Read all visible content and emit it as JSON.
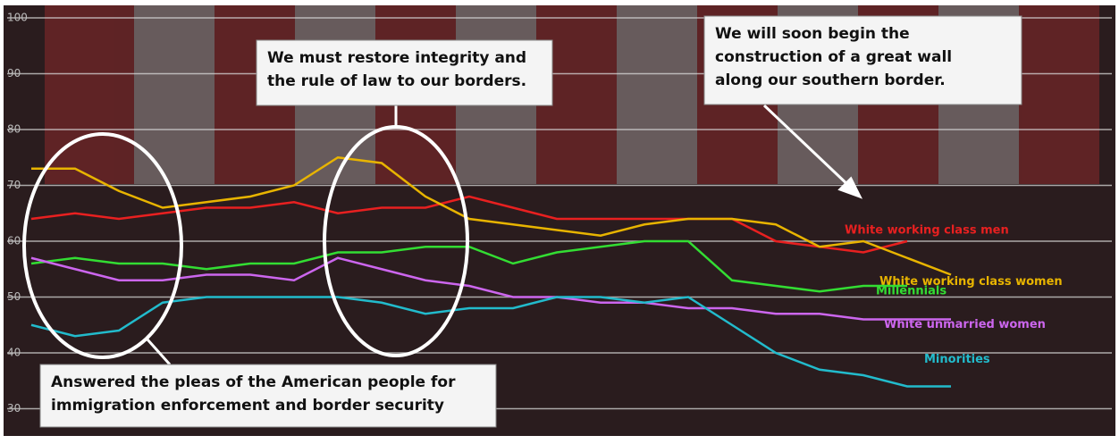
{
  "chart_data": {
    "type": "line",
    "categories": [
      null,
      null,
      null,
      null,
      null,
      null,
      null,
      null,
      null,
      null,
      null,
      null,
      null,
      null,
      null,
      null,
      null,
      null,
      null,
      null,
      null,
      null
    ],
    "series": [
      {
        "name": "White working class men",
        "color": "#e82020",
        "values": [
          64,
          65,
          64,
          65,
          66,
          66,
          67,
          65,
          66,
          66,
          68,
          66,
          64,
          64,
          64,
          64,
          64,
          60,
          59,
          58,
          60,
          null
        ]
      },
      {
        "name": "White working class women",
        "color": "#e8b400",
        "values": [
          73,
          73,
          69,
          66,
          67,
          68,
          70,
          75,
          74,
          68,
          64,
          63,
          62,
          61,
          63,
          64,
          64,
          63,
          59,
          60,
          57,
          54
        ]
      },
      {
        "name": "Millennials",
        "color": "#33dd33",
        "values": [
          56,
          57,
          56,
          56,
          55,
          56,
          56,
          58,
          58,
          59,
          59,
          56,
          58,
          59,
          60,
          60,
          53,
          52,
          51,
          52,
          52,
          null
        ]
      },
      {
        "name": "White unmarried women",
        "color": "#cc66ee",
        "values": [
          57,
          55,
          53,
          53,
          54,
          54,
          53,
          57,
          55,
          53,
          52,
          50,
          50,
          49,
          49,
          48,
          48,
          47,
          47,
          46,
          46,
          46
        ]
      },
      {
        "name": "Minorities",
        "color": "#22bbcc",
        "values": [
          45,
          43,
          44,
          49,
          50,
          50,
          50,
          50,
          49,
          47,
          48,
          48,
          50,
          50,
          49,
          50,
          45,
          40,
          37,
          36,
          34,
          34
        ]
      }
    ],
    "ylim": [
      25,
      100
    ],
    "yticks": [
      30,
      40,
      50,
      60,
      70,
      80,
      90,
      100
    ],
    "grid": true,
    "annotations": [
      [
        "We must restore integrity and",
        "the rule of law to our borders."
      ],
      [
        "We will soon begin the",
        "construction of a great wall",
        "along our southern border."
      ],
      [
        "Answered the pleas of the American people for",
        "immigration enforcement and border security"
      ]
    ]
  }
}
